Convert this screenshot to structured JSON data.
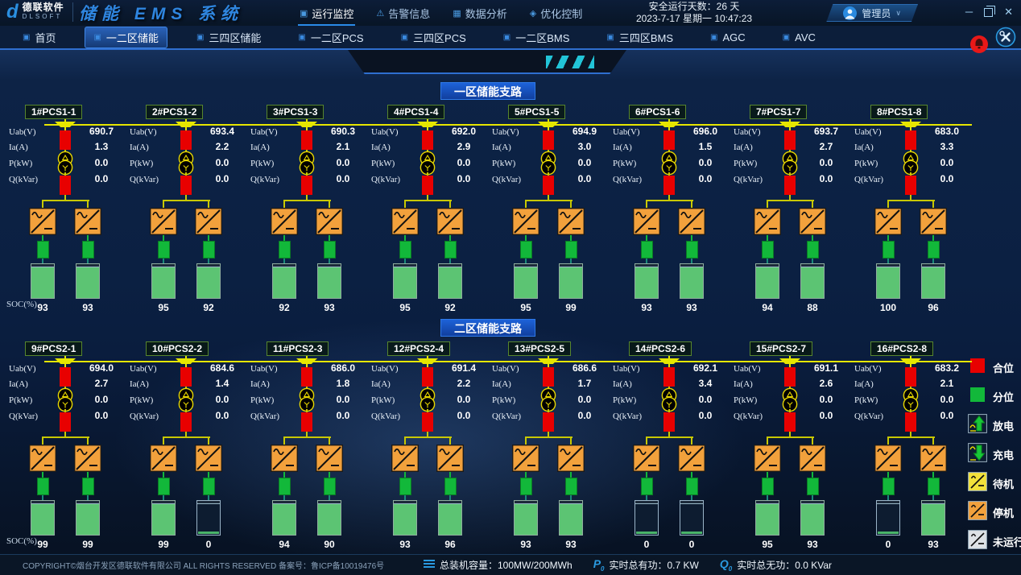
{
  "header": {
    "logo": {
      "mark": "d",
      "brand": "德联软件",
      "sub": "DLSOFT"
    },
    "app_title": "储能 EMS 系统",
    "nav": [
      {
        "id": "monitor",
        "label": "运行监控",
        "icon": "▣",
        "active": true
      },
      {
        "id": "alarm",
        "label": "告警信息",
        "icon": "⚠",
        "active": false
      },
      {
        "id": "analysis",
        "label": "数据分析",
        "icon": "▦",
        "active": false
      },
      {
        "id": "control",
        "label": "优化控制",
        "icon": "◈",
        "active": false
      }
    ],
    "safe_days": "安全运行天数：26 天",
    "datetime": "2023-7-17 星期一 10:47:23",
    "user": "管理员"
  },
  "icons": {
    "minimize": "─",
    "close": "✕",
    "user_chevron": "∨",
    "tab": "▣",
    "active_power_letter": "P",
    "reactive_power_letter": "Q"
  },
  "tabs": [
    {
      "label": "首页",
      "active": false
    },
    {
      "label": "一二区储能",
      "active": true
    },
    {
      "label": "三四区储能",
      "active": false
    },
    {
      "label": "一二区PCS",
      "active": false
    },
    {
      "label": "三四区PCS",
      "active": false
    },
    {
      "label": "一二区BMS",
      "active": false
    },
    {
      "label": "三四区BMS",
      "active": false
    },
    {
      "label": "AGC",
      "active": false
    },
    {
      "label": "AVC",
      "active": false
    }
  ],
  "param_labels": [
    "Uab(V)",
    "Ia(A)",
    "P(kW)",
    "Q(kVar)"
  ],
  "soc_label": "SOC(%)",
  "sections": [
    {
      "banner": "一区储能支路",
      "units": [
        {
          "name": "1#PCS1-1",
          "uab": "690.7",
          "ia": "1.3",
          "p": "0.0",
          "q": "0.0",
          "soc": [
            "93",
            "93"
          ]
        },
        {
          "name": "2#PCS1-2",
          "uab": "693.4",
          "ia": "2.2",
          "p": "0.0",
          "q": "0.0",
          "soc": [
            "95",
            "92"
          ]
        },
        {
          "name": "3#PCS1-3",
          "uab": "690.3",
          "ia": "2.1",
          "p": "0.0",
          "q": "0.0",
          "soc": [
            "92",
            "93"
          ]
        },
        {
          "name": "4#PCS1-4",
          "uab": "692.0",
          "ia": "2.9",
          "p": "0.0",
          "q": "0.0",
          "soc": [
            "95",
            "92"
          ]
        },
        {
          "name": "5#PCS1-5",
          "uab": "694.9",
          "ia": "3.0",
          "p": "0.0",
          "q": "0.0",
          "soc": [
            "95",
            "99"
          ]
        },
        {
          "name": "6#PCS1-6",
          "uab": "696.0",
          "ia": "1.5",
          "p": "0.0",
          "q": "0.0",
          "soc": [
            "93",
            "93"
          ]
        },
        {
          "name": "7#PCS1-7",
          "uab": "693.7",
          "ia": "2.7",
          "p": "0.0",
          "q": "0.0",
          "soc": [
            "94",
            "88"
          ]
        },
        {
          "name": "8#PCS1-8",
          "uab": "683.0",
          "ia": "3.3",
          "p": "0.0",
          "q": "0.0",
          "soc": [
            "100",
            "96"
          ]
        }
      ]
    },
    {
      "banner": "二区储能支路",
      "units": [
        {
          "name": "9#PCS2-1",
          "uab": "694.0",
          "ia": "2.7",
          "p": "0.0",
          "q": "0.0",
          "soc": [
            "99",
            "99"
          ]
        },
        {
          "name": "10#PCS2-2",
          "uab": "684.6",
          "ia": "1.4",
          "p": "0.0",
          "q": "0.0",
          "soc": [
            "99",
            "0"
          ]
        },
        {
          "name": "11#PCS2-3",
          "uab": "686.0",
          "ia": "1.8",
          "p": "0.0",
          "q": "0.0",
          "soc": [
            "94",
            "90"
          ]
        },
        {
          "name": "12#PCS2-4",
          "uab": "691.4",
          "ia": "2.2",
          "p": "0.0",
          "q": "0.0",
          "soc": [
            "93",
            "96"
          ]
        },
        {
          "name": "13#PCS2-5",
          "uab": "686.6",
          "ia": "1.7",
          "p": "0.0",
          "q": "0.0",
          "soc": [
            "93",
            "93"
          ]
        },
        {
          "name": "14#PCS2-6",
          "uab": "692.1",
          "ia": "3.4",
          "p": "0.0",
          "q": "0.0",
          "soc": [
            "0",
            "0"
          ]
        },
        {
          "name": "15#PCS2-7",
          "uab": "691.1",
          "ia": "2.6",
          "p": "0.0",
          "q": "0.0",
          "soc": [
            "95",
            "93"
          ]
        },
        {
          "name": "16#PCS2-8",
          "uab": "683.2",
          "ia": "2.1",
          "p": "0.0",
          "q": "0.0",
          "soc": [
            "0",
            "93"
          ]
        }
      ]
    }
  ],
  "legend": [
    {
      "type": "closed",
      "label": "合位"
    },
    {
      "type": "open",
      "label": "分位"
    },
    {
      "type": "discharge",
      "label": "放电"
    },
    {
      "type": "charge",
      "label": "充电"
    },
    {
      "type": "standby",
      "label": "待机"
    },
    {
      "type": "stopped",
      "label": "停机"
    },
    {
      "type": "offline",
      "label": "未运行"
    }
  ],
  "colors": {
    "breaker_closed": "#e80000",
    "switch_open": "#12b83a",
    "bus": "#e6e600",
    "inverter": "#f2a13c",
    "battery": "#5cc473",
    "banner": "#1d62d8",
    "standby": "#f2e23a",
    "stopped": "#f2a13c",
    "offline": "#dde2e6"
  },
  "footer": {
    "copyright": "COPYRIGHT©烟台开发区德联软件有限公司 ALL RIGHTS RESERVED 备案号：鲁ICP备10019476号",
    "capacity": "总装机容量：100MW/200MWh",
    "active_power": "实时总有功：0.7 KW",
    "reactive_power": "实时总无功：0.0 KVar"
  }
}
